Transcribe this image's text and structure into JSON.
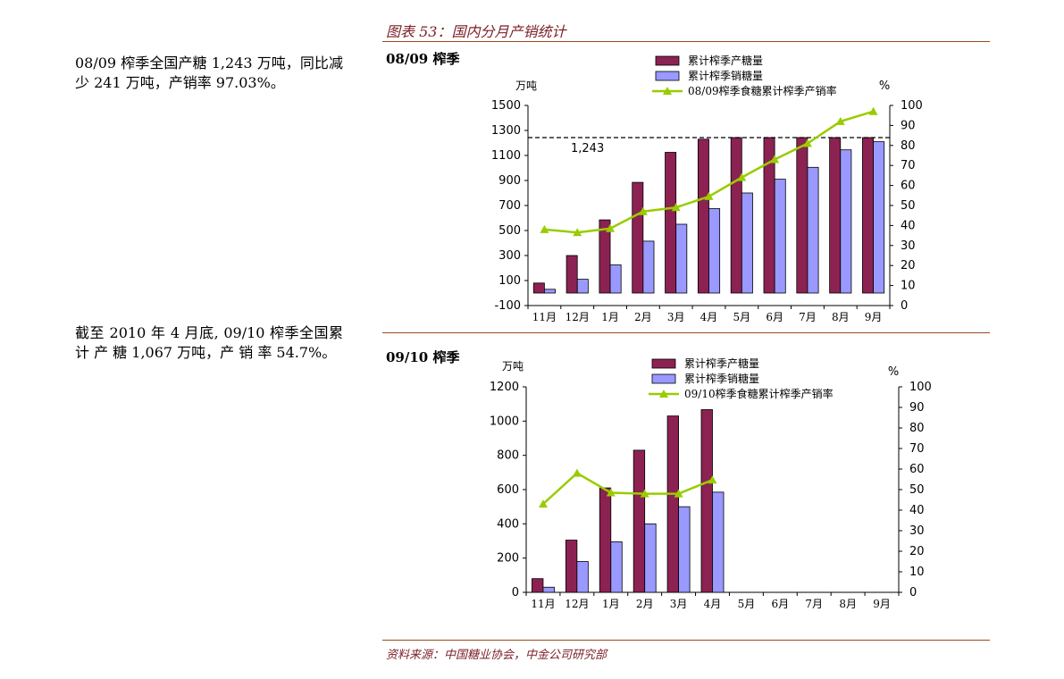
{
  "figure_title": "图表 53：国内分月产销统计",
  "source": "资料来源：中国糖业协会，中金公司研究部",
  "notes": [
    "08/09 榨季全国产糖 1,243 万吨，同比减少 241 万吨，产销率 97.03%。",
    "截至 2010 年 4 月底, 09/10 榨季全国累 计 产 糖 1,067 万吨，产 销 率 54.7%。"
  ],
  "chart_data": [
    {
      "type": "bar",
      "section_label": "08/09 榨季",
      "categories": [
        "11月",
        "12月",
        "1月",
        "2月",
        "3月",
        "4月",
        "5月",
        "6月",
        "7月",
        "8月",
        "9月"
      ],
      "y_left_unit": "万吨",
      "y_right_unit": "%",
      "ylim_left": [
        -100,
        1500
      ],
      "yticks_left": [
        -100,
        100,
        300,
        500,
        700,
        900,
        1100,
        1300,
        1500
      ],
      "ylim_right": [
        0,
        100
      ],
      "yticks_right": [
        0,
        10,
        20,
        30,
        40,
        50,
        60,
        70,
        80,
        90,
        100
      ],
      "series": [
        {
          "name": "累计榨季产糖量",
          "kind": "bar",
          "axis": "left",
          "color": "#8b2252",
          "values": [
            80,
            300,
            585,
            885,
            1125,
            1230,
            1243,
            1243,
            1243,
            1243,
            1243
          ]
        },
        {
          "name": "累计榨季销糖量",
          "kind": "bar",
          "axis": "left",
          "color": "#9999ff",
          "values": [
            30,
            110,
            225,
            415,
            550,
            675,
            800,
            910,
            1005,
            1145,
            1210
          ]
        },
        {
          "name": "08/09榨季食糖累计榨季产销率",
          "kind": "line",
          "axis": "right",
          "color": "#99cc00",
          "values": [
            38,
            36.5,
            38.5,
            47,
            49,
            54.5,
            64,
            73,
            81,
            92,
            97
          ]
        }
      ],
      "reference_line": {
        "value": 1243,
        "label": "1,243"
      },
      "legend": "top-center",
      "grid": false
    },
    {
      "type": "bar",
      "section_label": "09/10 榨季",
      "categories": [
        "11月",
        "12月",
        "1月",
        "2月",
        "3月",
        "4月",
        "5月",
        "6月",
        "7月",
        "8月",
        "9月"
      ],
      "y_left_unit": "万吨",
      "y_right_unit": "%",
      "ylim_left": [
        0,
        1200
      ],
      "yticks_left": [
        0,
        200,
        400,
        600,
        800,
        1000,
        1200
      ],
      "ylim_right": [
        0,
        100
      ],
      "yticks_right": [
        0,
        10,
        20,
        30,
        40,
        50,
        60,
        70,
        80,
        90,
        100
      ],
      "series": [
        {
          "name": "累计榨季产糖量",
          "kind": "bar",
          "axis": "left",
          "color": "#8b2252",
          "values": [
            80,
            305,
            610,
            830,
            1030,
            1067,
            null,
            null,
            null,
            null,
            null
          ]
        },
        {
          "name": "累计榨季销糖量",
          "kind": "bar",
          "axis": "left",
          "color": "#9999ff",
          "values": [
            30,
            180,
            295,
            400,
            500,
            585,
            null,
            null,
            null,
            null,
            null
          ]
        },
        {
          "name": "09/10榨季食糖累计榨季产销率",
          "kind": "line",
          "axis": "right",
          "color": "#99cc00",
          "values": [
            43,
            58,
            48.5,
            48,
            48,
            54.7,
            null,
            null,
            null,
            null,
            null
          ]
        }
      ],
      "legend": "top-center",
      "grid": false
    }
  ]
}
